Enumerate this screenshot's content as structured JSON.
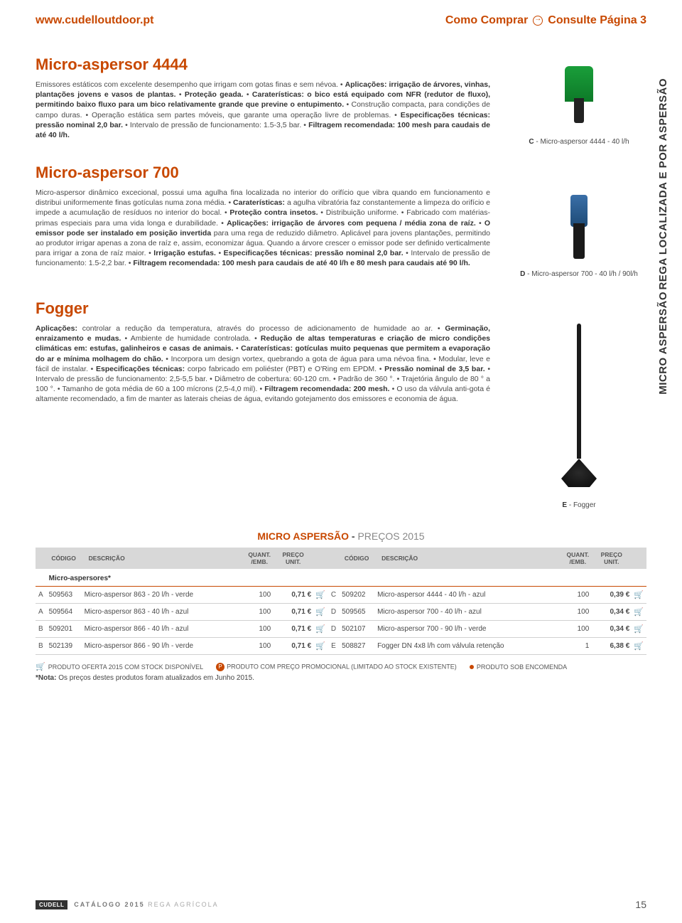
{
  "header": {
    "url": "www.cudelloutdoor.pt",
    "howbuy": "Como Comprar",
    "consult": "Consulte Página 3"
  },
  "sideLabels": {
    "top": "REGA LOCALIZADA E POR ASPERSÃO",
    "mid": "MICRO ASPERSÃO"
  },
  "sections": [
    {
      "title": "Micro-aspersor 4444",
      "captionRef": "C",
      "captionText": "Micro-aspersor 4444 - 40 l/h",
      "html": "Emissores estáticos com excelente desempenho que irrigam com gotas finas e sem névoa. • <b>Aplicações: irrigação de árvores, vinhas, plantações jovens e vasos de plantas.</b> • <b>Proteção geada.</b> • <b>Caraterísticas: o bico está equipado com NFR (redutor de fluxo), permitindo baixo fluxo para um bico relativamente grande que previne o entupimento.</b> • Construção compacta, para condições de campo duras. • Operação estática sem partes móveis, que garante uma operação livre de problemas. • <b>Especificações técnicas: pressão nominal 2,0 bar.</b> • Intervalo de pressão de funcionamento: 1.5-3,5 bar. • <b>Filtragem recomendada: 100 mesh para caudais de até 40 l/h.</b>"
    },
    {
      "title": "Micro-aspersor 700",
      "captionRef": "D",
      "captionText": "Micro-aspersor 700 - 40 l/h  /  90l/h",
      "html": "Micro-aspersor dinâmico excecional, possui uma agulha fina localizada no interior do orifício que vibra quando em funcionamento e distribui uniformemente finas gotículas numa zona média. • <b>Caraterísticas:</b> a agulha vibratória faz constantemente a limpeza do orifício e impede a acumulação de resíduos no interior do bocal. • <b>Proteção contra insetos.</b> • Distribuição uniforme. • Fabricado com matérias-primas especiais para uma vida longa e durabilidade. • <b>Aplicações: irrigação de árvores com pequena / média zona de raíz.</b> • <b>O emissor pode ser instalado em posição invertida</b> para uma rega de reduzido diâmetro. Aplicável para jovens plantações, permitindo ao produtor irrigar apenas a zona de raíz e, assim, economizar água. Quando a árvore crescer o emissor pode ser definido verticalmente para irrigar a zona de raíz maior. • <b>Irrigação estufas.</b> • <b>Especificações técnicas: pressão nominal 2,0 bar.</b> • Intervalo de pressão de funcionamento: 1.5-2,2 bar. • <b>Filtragem recomendada: 100 mesh para caudais de até 40 l/h e 80 mesh para caudais até 90 l/h.</b>"
    },
    {
      "title": "Fogger",
      "captionRef": "E",
      "captionText": "Fogger",
      "html": "<b>Aplicações:</b> controlar a redução da temperatura, através do processo de adicionamento de humidade ao ar. • <b>Germinação, enraizamento e mudas.</b> • Ambiente de humidade controlada. • <b>Redução de altas temperaturas e criação de micro condições climáticas em: estufas, galinheiros e casas de animais.</b> • <b>Caraterísticas: gotículas muito pequenas que permitem a evaporação do ar e mínima molhagem do chão.</b> • Incorpora um design vortex, quebrando a gota de água para uma névoa fina. • Modular, leve e fácil de instalar. • <b>Especificações técnicas:</b> corpo fabricado em poliéster (PBT) e O'Ring em EPDM. • <b>Pressão nominal de 3,5 bar.</b> • Intervalo de pressão de funcionamento: 2,5-5,5 bar. • Diâmetro de cobertura: 60-120 cm. • Padrão de 360 °. • Trajetória ângulo de 80 ° a 100 °. • Tamanho de gota média de 60 a 100 mícrons (2,5-4,0 mil). • <b>Filtragem recomendada: 200 mesh.</b> • O uso da válvula anti-gota é altamente recomendado, a fim de manter as laterais cheias de água, evitando gotejamento dos emissores e economia de água."
    }
  ],
  "priceTable": {
    "titleAccent": "MICRO ASPERSÃO",
    "titleDash": " - ",
    "titleYear": "PREÇOS 2015",
    "headers": {
      "code": "CÓDIGO",
      "desc": "DESCRIÇÃO",
      "qty": "QUANT. /EMB.",
      "price": "PREÇO UNIT."
    },
    "sectionLabel": "Micro-aspersores*",
    "left": [
      {
        "ref": "A",
        "code": "509563",
        "desc": "Micro-aspersor 863 - 20 l/h - verde",
        "qty": "100",
        "price": "0,71 €"
      },
      {
        "ref": "A",
        "code": "509564",
        "desc": "Micro-aspersor 863 - 40 l/h - azul",
        "qty": "100",
        "price": "0,71 €"
      },
      {
        "ref": "B",
        "code": "509201",
        "desc": "Micro-aspersor 866 - 40 l/h - azul",
        "qty": "100",
        "price": "0,71 €"
      },
      {
        "ref": "B",
        "code": "502139",
        "desc": "Micro-aspersor 866 - 90 l/h - verde",
        "qty": "100",
        "price": "0,71 €"
      }
    ],
    "right": [
      {
        "ref": "C",
        "code": "509202",
        "desc": "Micro-aspersor 4444 - 40 l/h - azul",
        "qty": "100",
        "price": "0,39 €"
      },
      {
        "ref": "D",
        "code": "509565",
        "desc": "Micro-aspersor 700 - 40 l/h - azul",
        "qty": "100",
        "price": "0,34 €"
      },
      {
        "ref": "D",
        "code": "502107",
        "desc": "Micro-aspersor 700 - 90 l/h - verde",
        "qty": "100",
        "price": "0,34 €"
      },
      {
        "ref": "E",
        "code": "508827",
        "desc": "Fogger DN 4x8 l/h com válvula retenção",
        "qty": "1",
        "price": "6,38 €"
      }
    ]
  },
  "legend": {
    "offer": "PRODUTO OFERTA 2015 COM STOCK DISPONÍVEL",
    "promo": "PRODUTO COM PREÇO PROMOCIONAL (LIMITADO AO STOCK EXISTENTE)",
    "order": "PRODUTO SOB ENCOMENDA",
    "note": "*Nota: Os preços destes produtos foram atualizados em Junho 2015."
  },
  "footer": {
    "brand": "CUDELL",
    "catalog": "CATÁLOGO 2015",
    "section": "REGA AGRÍCOLA",
    "page": "15"
  }
}
